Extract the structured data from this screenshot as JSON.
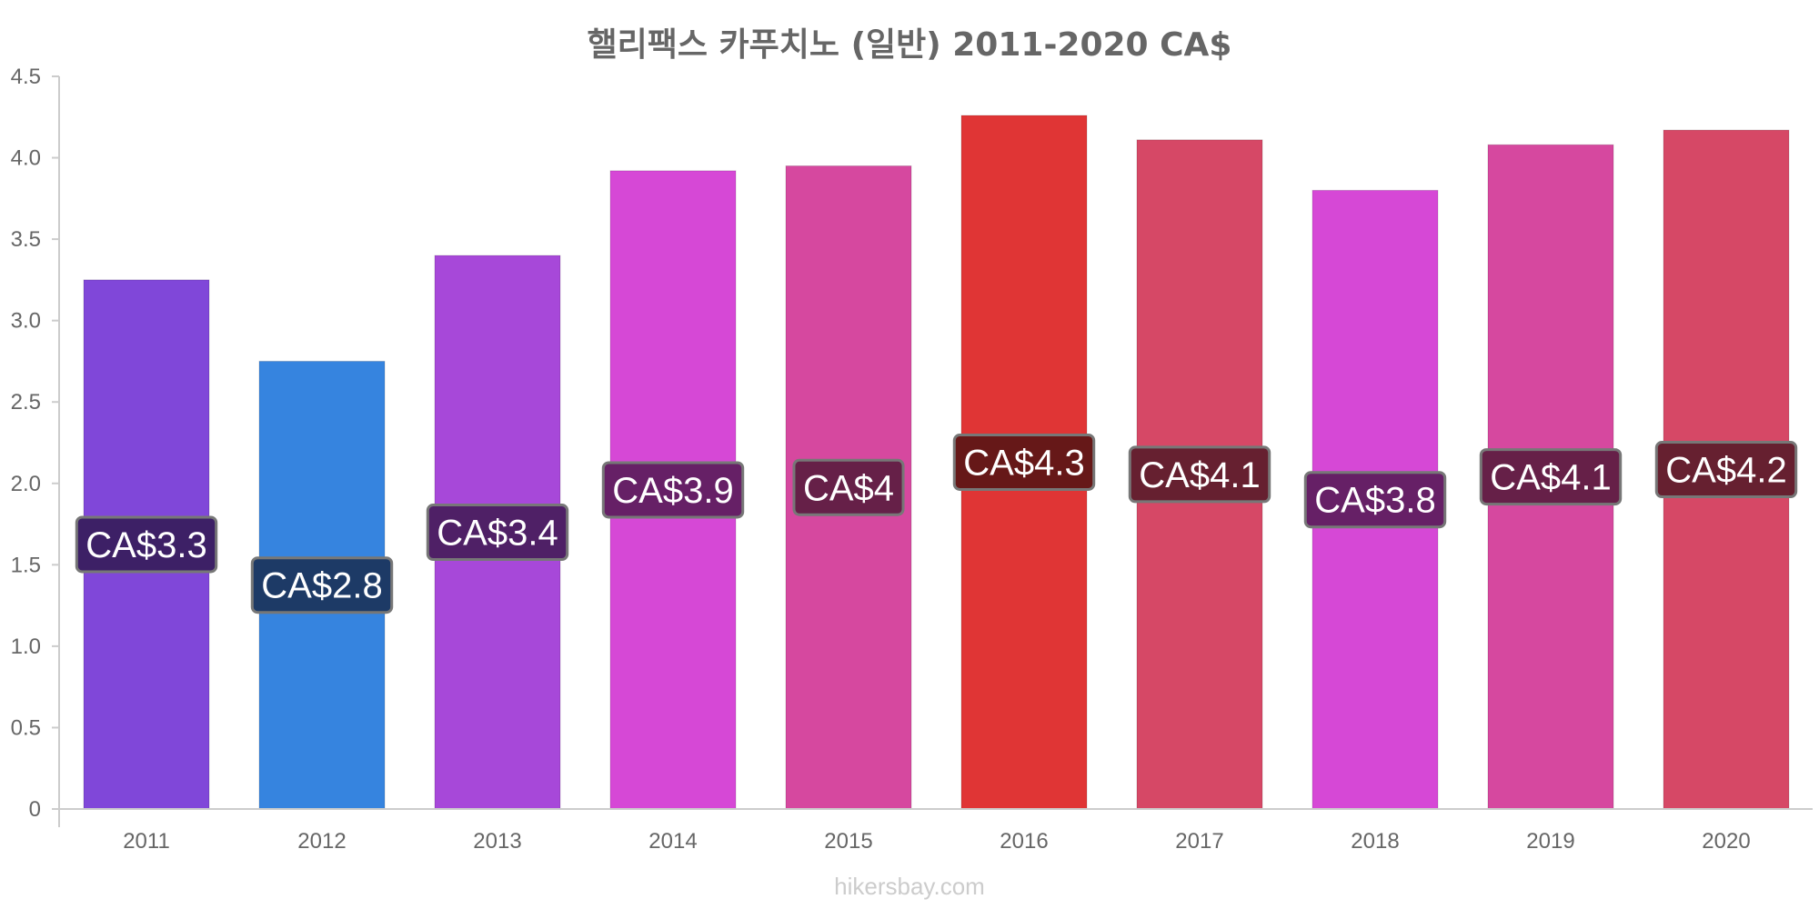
{
  "chart_data": {
    "type": "bar",
    "title": "핼리팩스 카푸치노 (일반) 2011-2020 CA$",
    "categories": [
      "2011",
      "2012",
      "2013",
      "2014",
      "2015",
      "2016",
      "2017",
      "2018",
      "2019",
      "2020"
    ],
    "values": [
      3.25,
      2.75,
      3.4,
      3.92,
      3.95,
      4.26,
      4.11,
      3.8,
      4.08,
      4.17
    ],
    "data_labels": [
      "CA$3.3",
      "CA$2.8",
      "CA$3.4",
      "CA$3.9",
      "CA$4",
      "CA$4.3",
      "CA$4.1",
      "CA$3.8",
      "CA$4.1",
      "CA$4.2"
    ],
    "bar_colors": [
      "#8047d9",
      "#3684df",
      "#a748d9",
      "#d648d6",
      "#d6489f",
      "#e03535",
      "#d64866",
      "#d648d6",
      "#d6489f",
      "#d64866"
    ],
    "label_bg_colors": [
      "#3d2066",
      "#1d3a66",
      "#4f2066",
      "#662066",
      "#662048",
      "#661818",
      "#662030",
      "#662066",
      "#662048",
      "#662030"
    ],
    "y_ticks": [
      "0",
      "0.5",
      "1.0",
      "1.5",
      "2.0",
      "2.5",
      "3.0",
      "3.5",
      "4.0",
      "4.5"
    ],
    "ylim": [
      0,
      4.5
    ],
    "xlabel": "",
    "ylabel": "",
    "grid": false,
    "legend": "none"
  },
  "watermark": "hikersbay.com"
}
